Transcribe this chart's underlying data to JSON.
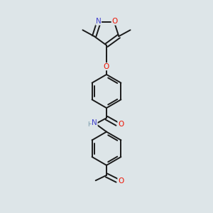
{
  "background_color": "#dde5e8",
  "bond_color": "#1a1a1a",
  "atom_colors": {
    "N": "#4040cc",
    "O": "#ee1100",
    "C": "#1a1a1a"
  },
  "figsize": [
    3.0,
    3.0
  ],
  "dpi": 100,
  "xlim": [
    0,
    10
  ],
  "ylim": [
    0,
    10
  ]
}
